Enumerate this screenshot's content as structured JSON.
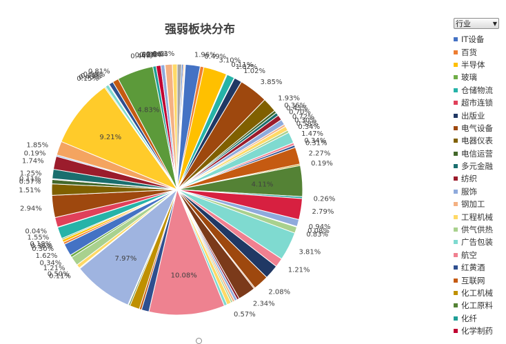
{
  "legend_header": {
    "label": "行业",
    "arrow": "▼"
  },
  "legend": [
    {
      "name": "IT设备",
      "color": "#4472c4"
    },
    {
      "name": "百货",
      "color": "#ed7d31"
    },
    {
      "name": "半导体",
      "color": "#ffc000"
    },
    {
      "name": "玻璃",
      "color": "#70ad47"
    },
    {
      "name": "仓储物流",
      "color": "#26b3a8"
    },
    {
      "name": "超市连锁",
      "color": "#e0405a"
    },
    {
      "name": "出版业",
      "color": "#203864"
    },
    {
      "name": "电气设备",
      "color": "#9e480e"
    },
    {
      "name": "电器仪表",
      "color": "#806000"
    },
    {
      "name": "电信运营",
      "color": "#43682b"
    },
    {
      "name": "多元金融",
      "color": "#1a6e6e"
    },
    {
      "name": "纺织",
      "color": "#9b1c2c"
    },
    {
      "name": "服饰",
      "color": "#8faadc"
    },
    {
      "name": "钢加工",
      "color": "#f4b183"
    },
    {
      "name": "工程机械",
      "color": "#ffd966"
    },
    {
      "name": "供气供热",
      "color": "#a9d18e"
    },
    {
      "name": "广告包装",
      "color": "#7fdad0"
    },
    {
      "name": "航空",
      "color": "#f08090"
    },
    {
      "name": "红黄酒",
      "color": "#2f4f8f"
    },
    {
      "name": "互联网",
      "color": "#c55a11"
    },
    {
      "name": "化工机械",
      "color": "#bf9000"
    },
    {
      "name": "化工原料",
      "color": "#548235"
    },
    {
      "name": "化纤",
      "color": "#1f9e96"
    },
    {
      "name": "化学制药",
      "color": "#c00030"
    }
  ],
  "chart_data": {
    "type": "pie",
    "title": "强弱板块分布",
    "slices": [
      {
        "label": "",
        "value": 0.59,
        "color": "#a5a5a5"
      },
      {
        "label": "",
        "value": 0.2,
        "color": "#4472c4"
      },
      {
        "label": "",
        "value": 0.15,
        "color": "#ed7d31"
      },
      {
        "label": "",
        "value": 0.1,
        "color": "#ffc000"
      },
      {
        "label": "",
        "value": 0.05,
        "color": "#70ad47"
      },
      {
        "label": "1.96%",
        "value": 1.96,
        "color": "#4472c4"
      },
      {
        "label": "0.49%",
        "value": 0.49,
        "color": "#ed7d31"
      },
      {
        "label": "3.10%",
        "value": 3.1,
        "color": "#ffc000"
      },
      {
        "label": "0.11%",
        "value": 0.11,
        "color": "#70ad47"
      },
      {
        "label": "1.02%",
        "value": 1.02,
        "color": "#26b3a8"
      },
      {
        "label": "",
        "value": 0.06,
        "color": "#e0405a"
      },
      {
        "label": "1.02%",
        "value": 1.02,
        "color": "#203864"
      },
      {
        "label": "3.85%",
        "value": 3.85,
        "color": "#9e480e"
      },
      {
        "label": "1.93%",
        "value": 1.93,
        "color": "#806000"
      },
      {
        "label": "0.36%",
        "value": 0.36,
        "color": "#43682b"
      },
      {
        "label": "0.43%",
        "value": 0.43,
        "color": "#1a6e6e"
      },
      {
        "label": "0.70%",
        "value": 0.7,
        "color": "#9b1c2c"
      },
      {
        "label": "0.72%",
        "value": 0.72,
        "color": "#8faadc"
      },
      {
        "label": "0.30%",
        "value": 0.3,
        "color": "#f4b183"
      },
      {
        "label": "0.58%",
        "value": 0.58,
        "color": "#ffd966"
      },
      {
        "label": "0.34%",
        "value": 0.34,
        "color": "#a9d18e"
      },
      {
        "label": "1.47%",
        "value": 1.47,
        "color": "#7fdad0"
      },
      {
        "label": "0.34%",
        "value": 0.34,
        "color": "#f08090"
      },
      {
        "label": "0.31%",
        "value": 0.31,
        "color": "#2f4f8f"
      },
      {
        "label": "2.27%",
        "value": 2.27,
        "color": "#c55a11"
      },
      {
        "label": "0.19%",
        "value": 0.19,
        "color": "#bf9000"
      },
      {
        "label": "4.11%",
        "value": 4.11,
        "color": "#548235"
      },
      {
        "label": "0.26%",
        "value": 0.26,
        "color": "#1f9e96"
      },
      {
        "label": "2.79%",
        "value": 2.79,
        "color": "#d72040"
      },
      {
        "label": "0.94%",
        "value": 0.94,
        "color": "#8faadc"
      },
      {
        "label": "0.08%",
        "value": 0.08,
        "color": "#ffd966"
      },
      {
        "label": "0.83%",
        "value": 0.83,
        "color": "#a9d18e"
      },
      {
        "label": "3.81%",
        "value": 3.81,
        "color": "#7fdad0"
      },
      {
        "label": "1.21%",
        "value": 1.21,
        "color": "#f08090"
      },
      {
        "label": "",
        "value": 1.9,
        "color": "#203864"
      },
      {
        "label": "2.08%",
        "value": 2.08,
        "color": "#9e480e"
      },
      {
        "label": "",
        "value": 0.15,
        "color": "#c55a11"
      },
      {
        "label": "2.34%",
        "value": 2.34,
        "color": "#7b3a1a"
      },
      {
        "label": "",
        "value": 0.3,
        "color": "#8b1a2a"
      },
      {
        "label": "",
        "value": 0.35,
        "color": "#8faadc"
      },
      {
        "label": "",
        "value": 0.3,
        "color": "#f4b183"
      },
      {
        "label": "",
        "value": 0.25,
        "color": "#a9d18e"
      },
      {
        "label": "0.57%",
        "value": 0.57,
        "color": "#ffd966"
      },
      {
        "label": "",
        "value": 0.4,
        "color": "#7fdad0"
      },
      {
        "label": "10.08%",
        "value": 10.08,
        "color": "#ee8290"
      },
      {
        "label": "",
        "value": 1.0,
        "color": "#2f4f8f"
      },
      {
        "label": "",
        "value": 0.3,
        "color": "#c55a11"
      },
      {
        "label": "",
        "value": 1.3,
        "color": "#bf9000"
      },
      {
        "label": "",
        "value": 0.2,
        "color": "#548235"
      },
      {
        "label": "",
        "value": 0.1,
        "color": "#4472c4"
      },
      {
        "label": "7.97%",
        "value": 7.97,
        "color": "#9fb4e0"
      },
      {
        "label": "0.11%",
        "value": 0.11,
        "color": "#ffc000"
      },
      {
        "label": "0.50%",
        "value": 0.5,
        "color": "#ffd966"
      },
      {
        "label": "1.21%",
        "value": 1.21,
        "color": "#a9d18e"
      },
      {
        "label": "0.34%",
        "value": 0.34,
        "color": "#70ad47"
      },
      {
        "label": "1.62%",
        "value": 1.62,
        "color": "#4472c4"
      },
      {
        "label": "0.30%",
        "value": 0.3,
        "color": "#ed7d31"
      },
      {
        "label": "0.36%",
        "value": 0.36,
        "color": "#ffc000"
      },
      {
        "label": "0.18%",
        "value": 0.18,
        "color": "#70ad47"
      },
      {
        "label": "1.55%",
        "value": 1.55,
        "color": "#26b3a8"
      },
      {
        "label": "0.04%",
        "value": 0.04,
        "color": "#e0405a"
      },
      {
        "label": "",
        "value": 1.3,
        "color": "#e0405a"
      },
      {
        "label": "2.94%",
        "value": 2.94,
        "color": "#9e480e"
      },
      {
        "label": "1.51%",
        "value": 1.51,
        "color": "#806000"
      },
      {
        "label": "0.57%",
        "value": 0.57,
        "color": "#43682b"
      },
      {
        "label": "0.11%",
        "value": 0.11,
        "color": "#4472c4"
      },
      {
        "label": "1.25%",
        "value": 1.25,
        "color": "#1a6e6e"
      },
      {
        "label": "1.74%",
        "value": 1.74,
        "color": "#9b1c2c"
      },
      {
        "label": "0.19%",
        "value": 0.19,
        "color": "#8faadc"
      },
      {
        "label": "1.85%",
        "value": 1.85,
        "color": "#f4a460"
      },
      {
        "label": "9.21%",
        "value": 9.21,
        "color": "#ffcb2a"
      },
      {
        "label": "0.15%",
        "value": 0.15,
        "color": "#a9d18e"
      },
      {
        "label": "0.45%",
        "value": 0.45,
        "color": "#7fdad0"
      },
      {
        "label": "0.11%",
        "value": 0.11,
        "color": "#f08090"
      },
      {
        "label": "0.58%",
        "value": 0.58,
        "color": "#2f4f8f"
      },
      {
        "label": "0.81%",
        "value": 0.81,
        "color": "#c55a11"
      },
      {
        "label": "4.83%",
        "value": 4.83,
        "color": "#5c9a3a"
      },
      {
        "label": "0.44%",
        "value": 0.44,
        "color": "#1f9e96"
      },
      {
        "label": "0.62%",
        "value": 0.62,
        "color": "#c00030"
      },
      {
        "label": "0.51%",
        "value": 0.51,
        "color": "#8faadc"
      },
      {
        "label": "0.06%",
        "value": 0.06,
        "color": "#ed7d31"
      },
      {
        "label": "0.96%",
        "value": 0.96,
        "color": "#f4b183"
      },
      {
        "label": "0.63%",
        "value": 0.63,
        "color": "#ffd966"
      }
    ]
  }
}
